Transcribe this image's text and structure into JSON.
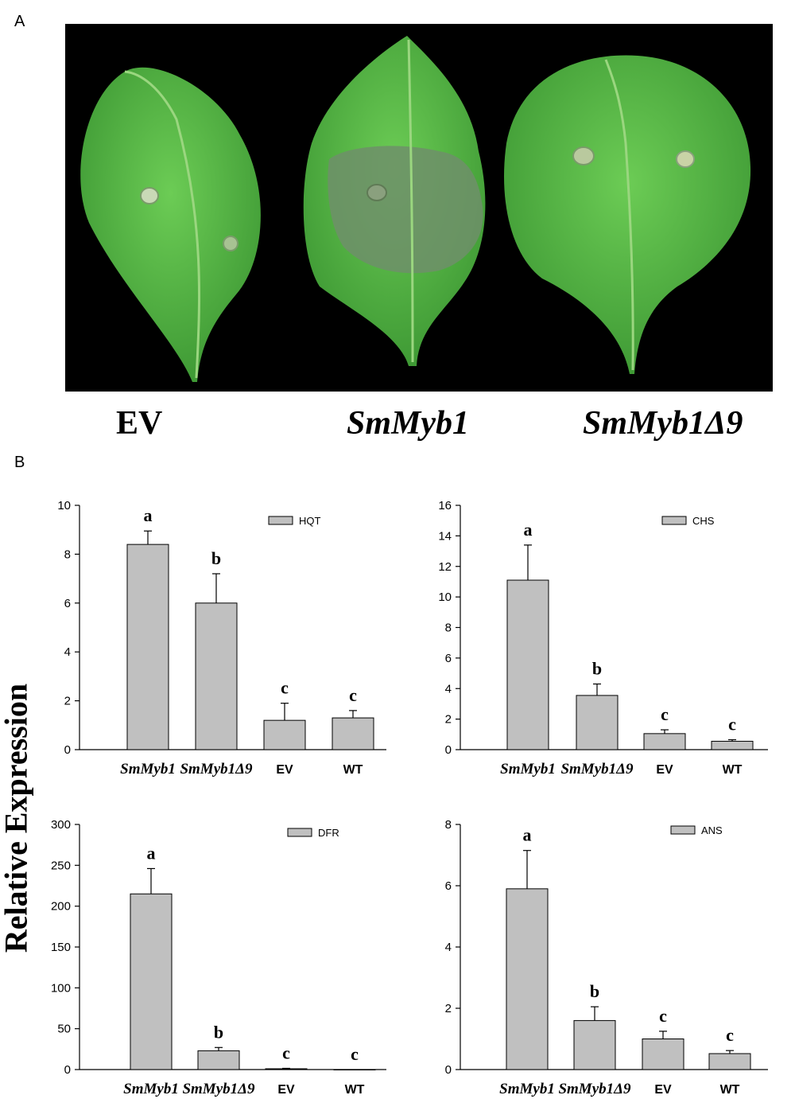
{
  "panels": {
    "a": "A",
    "b": "B"
  },
  "photo_labels": {
    "ev": "EV",
    "smmyb1": "SmMyb1",
    "smmyb1d9": "SmMyb1Δ9"
  },
  "y_axis_label": "Relative Expression",
  "colors": {
    "bar": "#c0c0c0",
    "photo_bg": "#000000",
    "leaf": "#5fbf4a",
    "leaf_dark": "#3f9a35",
    "lesion": "#6f8f6a"
  },
  "chart_data": [
    {
      "type": "bar",
      "legend": "HQT",
      "categories": [
        "SmMyb1",
        "SmMyb1Δ9",
        "EV",
        "WT"
      ],
      "values": [
        8.4,
        6.0,
        1.2,
        1.3
      ],
      "errors": [
        0.55,
        1.2,
        0.7,
        0.3
      ],
      "letters": [
        "a",
        "b",
        "c",
        "c"
      ],
      "ylim": [
        0,
        10
      ],
      "yticks": [
        "0",
        "2",
        "4",
        "6",
        "8",
        "10"
      ]
    },
    {
      "type": "bar",
      "legend": "CHS",
      "categories": [
        "SmMyb1",
        "SmMyb1Δ9",
        "EV",
        "WT"
      ],
      "values": [
        11.1,
        3.55,
        1.05,
        0.55
      ],
      "errors": [
        2.3,
        0.75,
        0.25,
        0.1
      ],
      "letters": [
        "a",
        "b",
        "c",
        "c"
      ],
      "ylim": [
        0,
        16
      ],
      "yticks": [
        "0",
        "2",
        "4",
        "6",
        "8",
        "10",
        "12",
        "14",
        "16"
      ]
    },
    {
      "type": "bar",
      "legend": "DFR",
      "categories": [
        "SmMyb1",
        "SmMyb1Δ9",
        "EV",
        "WT"
      ],
      "values": [
        215,
        23,
        1,
        0
      ],
      "errors": [
        31,
        4,
        0.5,
        0
      ],
      "letters": [
        "a",
        "b",
        "c",
        "c"
      ],
      "ylim": [
        0,
        300
      ],
      "yticks": [
        "0",
        "50",
        "100",
        "150",
        "200",
        "250",
        "300"
      ]
    },
    {
      "type": "bar",
      "legend": "ANS",
      "categories": [
        "SmMyb1",
        "SmMyb1Δ9",
        "EV",
        "WT"
      ],
      "values": [
        5.9,
        1.6,
        1.0,
        0.52
      ],
      "errors": [
        1.25,
        0.45,
        0.25,
        0.1
      ],
      "letters": [
        "a",
        "b",
        "c",
        "c"
      ],
      "ylim": [
        0,
        8
      ],
      "yticks": [
        "0",
        "2",
        "4",
        "6",
        "8"
      ]
    }
  ]
}
